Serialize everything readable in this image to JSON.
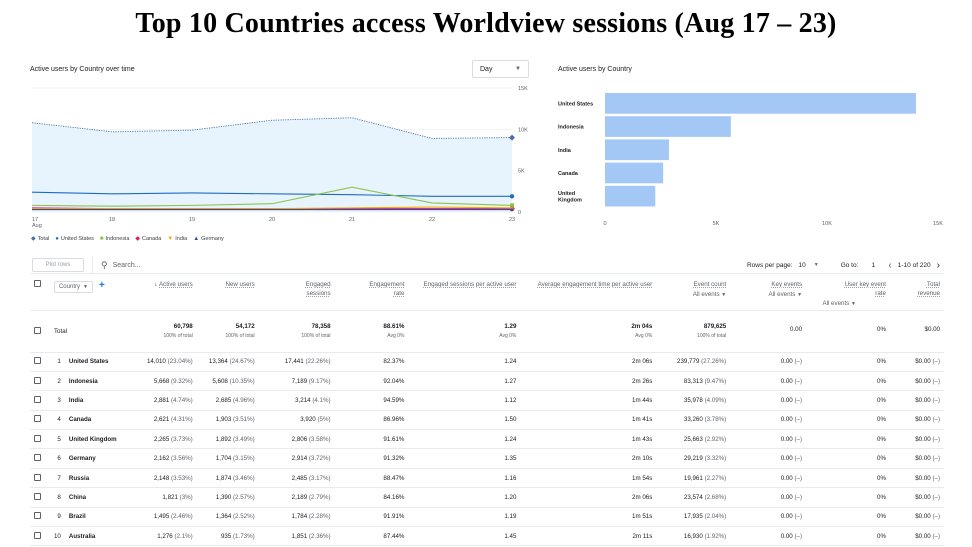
{
  "slide": {
    "title": "Top 10 Countries access Worldview sessions (Aug 17 – 23)"
  },
  "line_card": {
    "title": "Active users by Country over time",
    "day_select": "Day"
  },
  "bar_card": {
    "title": "Active users by Country"
  },
  "chart_data": [
    {
      "type": "line",
      "title": "Active users by Country over time",
      "x": [
        "17 Aug",
        "18",
        "19",
        "20",
        "21",
        "22",
        "23"
      ],
      "x_tick_labels": [
        "17",
        "18",
        "19",
        "20",
        "21",
        "22",
        "23"
      ],
      "x_sub_label": "Aug",
      "ylim": [
        0,
        15000
      ],
      "y_ticks": [
        "0",
        "5K",
        "10K",
        "15K"
      ],
      "y_axis_side": "right",
      "legend_position": "bottom-left",
      "series": [
        {
          "name": "Total",
          "values": [
            10800,
            9700,
            9900,
            11100,
            11400,
            8900,
            9000
          ],
          "color": "#4a6fa5"
        },
        {
          "name": "United States",
          "values": [
            2400,
            2200,
            2300,
            2200,
            2100,
            1900,
            1900
          ],
          "color": "#1e6bc6"
        },
        {
          "name": "Indonesia",
          "values": [
            800,
            700,
            800,
            1000,
            3000,
            1100,
            800
          ],
          "color": "#8bc34a"
        },
        {
          "name": "Canada",
          "values": [
            500,
            400,
            400,
            400,
            400,
            400,
            400
          ],
          "color": "#d81b60"
        },
        {
          "name": "India",
          "values": [
            400,
            400,
            400,
            400,
            500,
            600,
            500
          ],
          "color": "#f9ab00"
        },
        {
          "name": "Germany",
          "values": [
            300,
            300,
            300,
            300,
            300,
            300,
            300
          ],
          "color": "#3949ab"
        }
      ],
      "legend": [
        {
          "name": "Total",
          "icon": "diamond-icon",
          "color": "#4a6fa5"
        },
        {
          "name": "United States",
          "icon": "circle-icon",
          "color": "#1e6bc6"
        },
        {
          "name": "Indonesia",
          "icon": "square-icon",
          "color": "#8bc34a"
        },
        {
          "name": "Canada",
          "icon": "diamond-icon",
          "color": "#d81b60"
        },
        {
          "name": "India",
          "icon": "triangle-down-icon",
          "color": "#f9ab00"
        },
        {
          "name": "Germany",
          "icon": "triangle-up-icon",
          "color": "#3949ab"
        }
      ]
    },
    {
      "type": "bar",
      "orientation": "horizontal",
      "title": "Active users by Country",
      "categories": [
        "United States",
        "Indonesia",
        "India",
        "Canada",
        "United Kingdom"
      ],
      "values": [
        14010,
        5668,
        2881,
        2621,
        2265
      ],
      "xlim": [
        0,
        15000
      ],
      "x_ticks": [
        "0",
        "5K",
        "10K",
        "15K"
      ],
      "color": "#a4c8f5"
    }
  ],
  "table": {
    "plot_rows": "Plot rows",
    "search_placeholder": "Search...",
    "rows_per_page_label": "Rows per page:",
    "rows_per_page": "10",
    "goto_label": "Go to:",
    "goto_value": "1",
    "range": "1-10 of 220",
    "dimension": "Country",
    "columns": [
      {
        "label": "Active users",
        "sorted": "↓"
      },
      {
        "label": "New users"
      },
      {
        "label": "Engaged sessions"
      },
      {
        "label": "Engagement rate"
      },
      {
        "label": "Engaged sessions per active user"
      },
      {
        "label": "Average engagement time per active user"
      },
      {
        "label": "Event count",
        "sub": "All events"
      },
      {
        "label": "Key events",
        "sub": "All events"
      },
      {
        "label": "User key event rate",
        "sub": "All events"
      },
      {
        "label": "Total revenue"
      }
    ],
    "total": {
      "label": "Total",
      "values": [
        "60,798",
        "54,172",
        "78,358",
        "88.61%",
        "1.29",
        "2m 04s",
        "879,625",
        "0.00",
        "0%",
        "$0.00"
      ],
      "subs": [
        "100% of total",
        "100% of total",
        "100% of total",
        "Avg 0%",
        "Avg 0%",
        "Avg 0%",
        "100% of total",
        "",
        "",
        ""
      ]
    },
    "rows": [
      {
        "idx": "1",
        "country": "United States",
        "active": "14,010",
        "active_pct": "(23.04%)",
        "new": "13,364",
        "new_pct": "(24.67%)",
        "eng": "17,441",
        "eng_pct": "(22.26%)",
        "rate": "82.37%",
        "per_user": "1.24",
        "time": "2m 06s",
        "events": "239,779",
        "events_pct": "(27.26%)",
        "key": "0.00",
        "key_pct": "(–)",
        "ukr": "0%",
        "rev": "$0.00",
        "rev_pct": "(–)"
      },
      {
        "idx": "2",
        "country": "Indonesia",
        "active": "5,668",
        "active_pct": "(9.32%)",
        "new": "5,608",
        "new_pct": "(10.35%)",
        "eng": "7,189",
        "eng_pct": "(9.17%)",
        "rate": "92.04%",
        "per_user": "1.27",
        "time": "2m 26s",
        "events": "83,313",
        "events_pct": "(9.47%)",
        "key": "0.00",
        "key_pct": "(–)",
        "ukr": "0%",
        "rev": "$0.00",
        "rev_pct": "(–)"
      },
      {
        "idx": "3",
        "country": "India",
        "active": "2,881",
        "active_pct": "(4.74%)",
        "new": "2,685",
        "new_pct": "(4.96%)",
        "eng": "3,214",
        "eng_pct": "(4.1%)",
        "rate": "94.59%",
        "per_user": "1.12",
        "time": "1m 44s",
        "events": "35,978",
        "events_pct": "(4.09%)",
        "key": "0.00",
        "key_pct": "(–)",
        "ukr": "0%",
        "rev": "$0.00",
        "rev_pct": "(–)"
      },
      {
        "idx": "4",
        "country": "Canada",
        "active": "2,621",
        "active_pct": "(4.31%)",
        "new": "1,903",
        "new_pct": "(3.51%)",
        "eng": "3,920",
        "eng_pct": "(5%)",
        "rate": "86.96%",
        "per_user": "1.50",
        "time": "1m 41s",
        "events": "33,260",
        "events_pct": "(3.78%)",
        "key": "0.00",
        "key_pct": "(–)",
        "ukr": "0%",
        "rev": "$0.00",
        "rev_pct": "(–)"
      },
      {
        "idx": "5",
        "country": "United Kingdom",
        "active": "2,265",
        "active_pct": "(3.73%)",
        "new": "1,892",
        "new_pct": "(3.49%)",
        "eng": "2,806",
        "eng_pct": "(3.58%)",
        "rate": "91.61%",
        "per_user": "1.24",
        "time": "1m 43s",
        "events": "25,663",
        "events_pct": "(2.92%)",
        "key": "0.00",
        "key_pct": "(–)",
        "ukr": "0%",
        "rev": "$0.00",
        "rev_pct": "(–)"
      },
      {
        "idx": "6",
        "country": "Germany",
        "active": "2,162",
        "active_pct": "(3.56%)",
        "new": "1,704",
        "new_pct": "(3.15%)",
        "eng": "2,914",
        "eng_pct": "(3.72%)",
        "rate": "91.32%",
        "per_user": "1.35",
        "time": "2m 10s",
        "events": "29,219",
        "events_pct": "(3.32%)",
        "key": "0.00",
        "key_pct": "(–)",
        "ukr": "0%",
        "rev": "$0.00",
        "rev_pct": "(–)"
      },
      {
        "idx": "7",
        "country": "Russia",
        "active": "2,148",
        "active_pct": "(3.53%)",
        "new": "1,874",
        "new_pct": "(3.46%)",
        "eng": "2,485",
        "eng_pct": "(3.17%)",
        "rate": "88.47%",
        "per_user": "1.16",
        "time": "1m 54s",
        "events": "19,961",
        "events_pct": "(2.27%)",
        "key": "0.00",
        "key_pct": "(–)",
        "ukr": "0%",
        "rev": "$0.00",
        "rev_pct": "(–)"
      },
      {
        "idx": "8",
        "country": "China",
        "active": "1,821",
        "active_pct": "(3%)",
        "new": "1,390",
        "new_pct": "(2.57%)",
        "eng": "2,189",
        "eng_pct": "(2.79%)",
        "rate": "84.16%",
        "per_user": "1.20",
        "time": "2m 06s",
        "events": "23,574",
        "events_pct": "(2.68%)",
        "key": "0.00",
        "key_pct": "(–)",
        "ukr": "0%",
        "rev": "$0.00",
        "rev_pct": "(–)"
      },
      {
        "idx": "9",
        "country": "Brazil",
        "active": "1,495",
        "active_pct": "(2.46%)",
        "new": "1,364",
        "new_pct": "(2.52%)",
        "eng": "1,784",
        "eng_pct": "(2.28%)",
        "rate": "91.91%",
        "per_user": "1.19",
        "time": "1m 51s",
        "events": "17,935",
        "events_pct": "(2.04%)",
        "key": "0.00",
        "key_pct": "(–)",
        "ukr": "0%",
        "rev": "$0.00",
        "rev_pct": "(–)"
      },
      {
        "idx": "10",
        "country": "Australia",
        "active": "1,276",
        "active_pct": "(2.1%)",
        "new": "935",
        "new_pct": "(1.73%)",
        "eng": "1,851",
        "eng_pct": "(2.36%)",
        "rate": "87.44%",
        "per_user": "1.45",
        "time": "2m 11s",
        "events": "16,930",
        "events_pct": "(1.92%)",
        "key": "0.00",
        "key_pct": "(–)",
        "ukr": "0%",
        "rev": "$0.00",
        "rev_pct": "(–)"
      }
    ]
  }
}
